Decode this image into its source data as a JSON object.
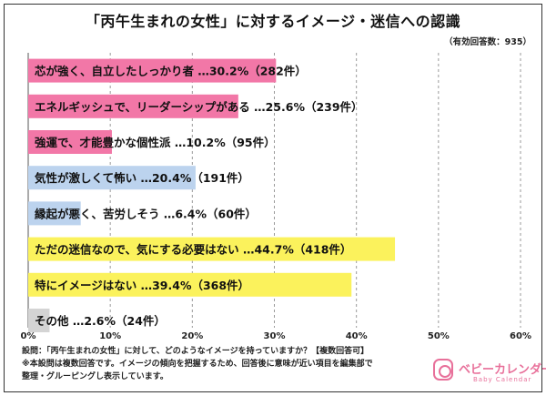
{
  "page": {
    "title": "「丙午生まれの女性」に対するイメージ・迷信への認識",
    "sample_note": "（有効回答数：935）",
    "footnotes": [
      "設問：「丙午生まれの女性」に対して、どのようなイメージを持っていますか？【複数回答可】",
      "※本設問は複数回答です。イメージの傾向を把握するため、回答後に意味が近い項目を編集部で",
      "整理・グルーピングし表示しています。"
    ],
    "logo": {
      "name": "ベビーカレンダー",
      "sub": "Baby Calendar"
    }
  },
  "chart_data": {
    "type": "bar",
    "orientation": "horizontal",
    "xlim": [
      0,
      60
    ],
    "ticks": [
      "0%",
      "10%",
      "20%",
      "30%",
      "40%",
      "50%",
      "60%"
    ],
    "tick_values": [
      0,
      10,
      20,
      30,
      40,
      50,
      60
    ],
    "grid": "vertical dashed",
    "bars": [
      {
        "label": "芯が強く、自立したしっかり者 …30.2%（282件）",
        "value": 30.2,
        "color": "#f277a7"
      },
      {
        "label": "エネルギッシュで、リーダーシップがある …25.6%（239件）",
        "value": 25.6,
        "color": "#f277a7"
      },
      {
        "label": "強運で、才能豊かな個性派 …10.2%（95件）",
        "value": 10.2,
        "color": "#f277a7"
      },
      {
        "label": "気性が激しくて怖い …20.4%（191件）",
        "value": 20.4,
        "color": "#bcd3ee"
      },
      {
        "label": "縁起が悪く、苦労しそう …6.4%（60件）",
        "value": 6.4,
        "color": "#bcd3ee"
      },
      {
        "label": "ただの迷信なので、気にする必要はない …44.7%（418件）",
        "value": 44.7,
        "color": "#fbf25c"
      },
      {
        "label": "特にイメージはない …39.4%（368件）",
        "value": 39.4,
        "color": "#fbf25c"
      },
      {
        "label": "その他 …2.6%（24件）",
        "value": 2.6,
        "color": "#d4d4d4"
      }
    ]
  }
}
